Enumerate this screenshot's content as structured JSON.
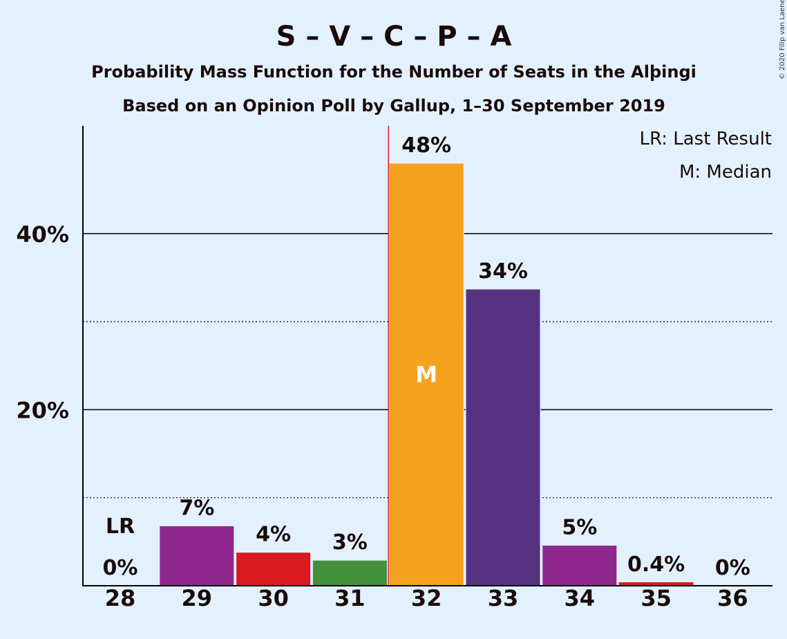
{
  "chart_data": {
    "type": "bar",
    "title": "S – V – C – P – A",
    "subtitle_lines": [
      "Probability Mass Function for the Number of Seats in the Alþingi",
      "Based on an Opinion Poll by Gallup, 1–30 September 2019"
    ],
    "categories": [
      "28",
      "29",
      "30",
      "31",
      "32",
      "33",
      "34",
      "35",
      "36"
    ],
    "values": [
      0,
      6.8,
      3.8,
      2.9,
      48,
      33.7,
      4.6,
      0.4,
      0
    ],
    "value_labels": [
      "0%",
      "7%",
      "4%",
      "3%",
      "48%",
      "34%",
      "5%",
      "0.4%",
      "0%"
    ],
    "bar_colors": [
      "#8e288c",
      "#8e288c",
      "#da1a20",
      "#438f3c",
      "#f5a31e",
      "#55327f",
      "#8e288c",
      "#da1a20",
      "#8e288c"
    ],
    "y_ticks": [
      {
        "value": 20,
        "label": "20%"
      },
      {
        "value": 40,
        "label": "40%"
      }
    ],
    "minor_gridlines": [
      10,
      30
    ],
    "ylim": [
      0,
      52
    ],
    "last_result": {
      "category": "28",
      "label": "LR"
    },
    "median": {
      "category": "32",
      "label": "M"
    },
    "legend": [
      "LR: Last Result",
      "M: Median"
    ],
    "legend_position": "top-right",
    "copyright": "© 2020 Filip van Laenen"
  }
}
